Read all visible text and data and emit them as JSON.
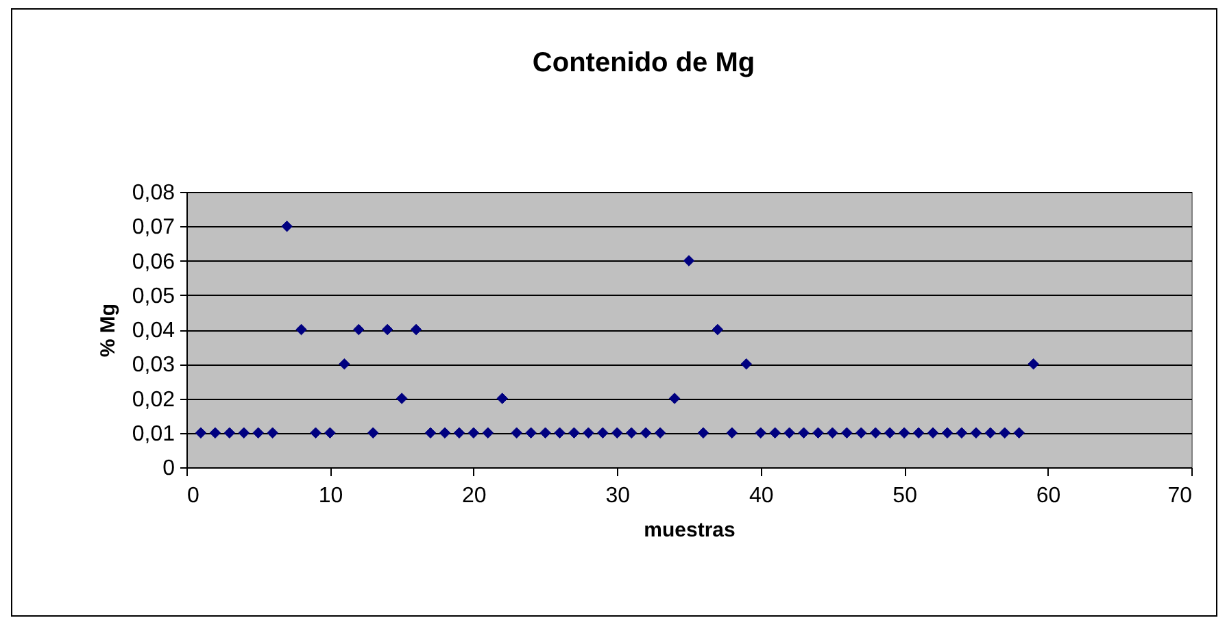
{
  "chart_data": {
    "type": "scatter",
    "title": "Contenido de Mg",
    "xlabel": "muestras",
    "ylabel": "% Mg",
    "x": [
      1,
      2,
      3,
      4,
      5,
      6,
      7,
      8,
      9,
      10,
      11,
      12,
      13,
      14,
      15,
      16,
      17,
      18,
      19,
      20,
      21,
      22,
      23,
      24,
      25,
      26,
      27,
      28,
      29,
      30,
      31,
      32,
      33,
      34,
      35,
      36,
      37,
      38,
      39,
      40,
      41,
      42,
      43,
      44,
      45,
      46,
      47,
      48,
      49,
      50,
      51,
      52,
      53,
      54,
      55,
      56,
      57,
      58,
      59
    ],
    "series": [
      {
        "color": "#000080",
        "values": [
          0.01,
          0.01,
          0.01,
          0.01,
          0.01,
          0.01,
          0.07,
          0.04,
          0.01,
          0.01,
          0.03,
          0.04,
          0.01,
          0.04,
          0.02,
          0.04,
          0.01,
          0.01,
          0.01,
          0.01,
          0.01,
          0.02,
          0.01,
          0.01,
          0.01,
          0.01,
          0.01,
          0.01,
          0.01,
          0.01,
          0.01,
          0.01,
          0.01,
          0.02,
          0.06,
          0.01,
          0.04,
          0.01,
          0.03,
          0.01,
          0.01,
          0.01,
          0.01,
          0.01,
          0.01,
          0.01,
          0.01,
          0.01,
          0.01,
          0.01,
          0.01,
          0.01,
          0.01,
          0.01,
          0.01,
          0.01,
          0.01,
          0.01,
          0.03
        ]
      }
    ],
    "xlim": [
      0,
      70
    ],
    "xticks": [
      0,
      10,
      20,
      30,
      40,
      50,
      60,
      70
    ],
    "ylim": [
      0,
      0.08
    ],
    "yticks": [
      0,
      {
        "value": 0.01,
        "label": "0,01"
      },
      {
        "value": 0.02,
        "label": "0,02"
      },
      {
        "value": 0.03,
        "label": "0,03"
      },
      {
        "value": 0.04,
        "label": "0,04"
      },
      {
        "value": 0.05,
        "label": "0,05"
      },
      {
        "value": 0.06,
        "label": "0,06"
      },
      {
        "value": 0.07,
        "label": "0,07"
      },
      {
        "value": 0.08,
        "label": "0,08"
      }
    ],
    "grid": "y",
    "marker": "diamond"
  }
}
